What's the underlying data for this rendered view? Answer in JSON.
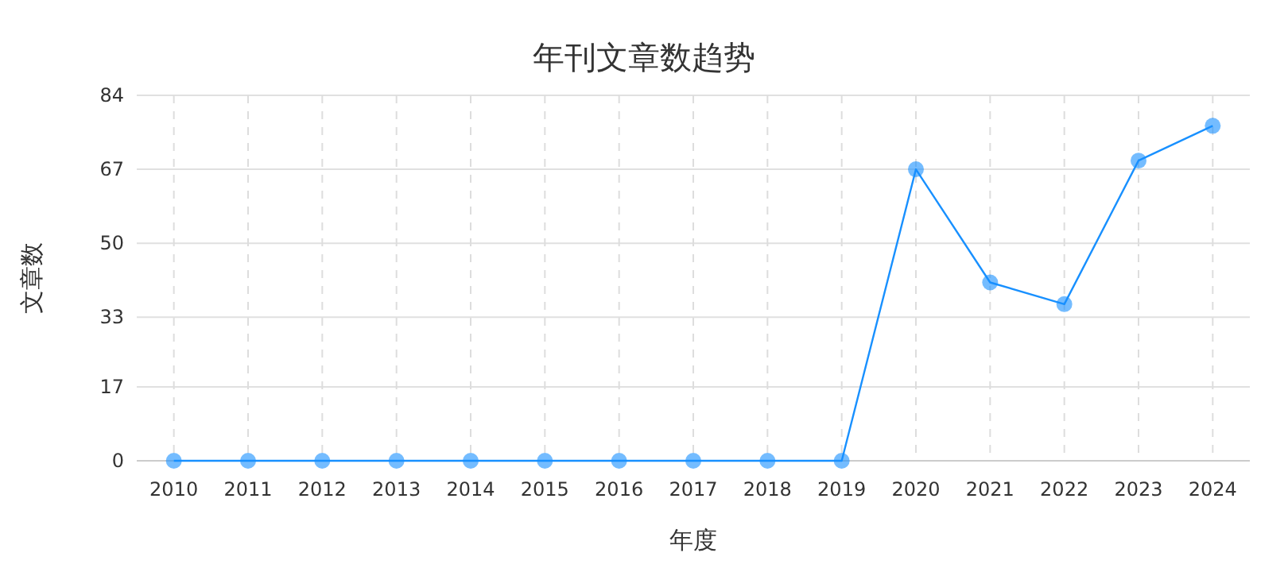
{
  "chart_data": {
    "type": "line",
    "title": "年刊文章数趋势",
    "xlabel": "年度",
    "ylabel": "文章数",
    "categories": [
      "2010",
      "2011",
      "2012",
      "2013",
      "2014",
      "2015",
      "2016",
      "2017",
      "2018",
      "2019",
      "2020",
      "2021",
      "2022",
      "2023",
      "2024"
    ],
    "series": [
      {
        "color": "#1890ff",
        "values": [
          0,
          0,
          0,
          0,
          0,
          0,
          0,
          0,
          0,
          0,
          67,
          41,
          36,
          69,
          77
        ]
      }
    ],
    "ylim": [
      0,
      84
    ],
    "yticks": [
      0,
      17,
      33,
      50,
      67,
      84
    ],
    "grid": true,
    "marker": "circle",
    "line_style": "solid"
  }
}
